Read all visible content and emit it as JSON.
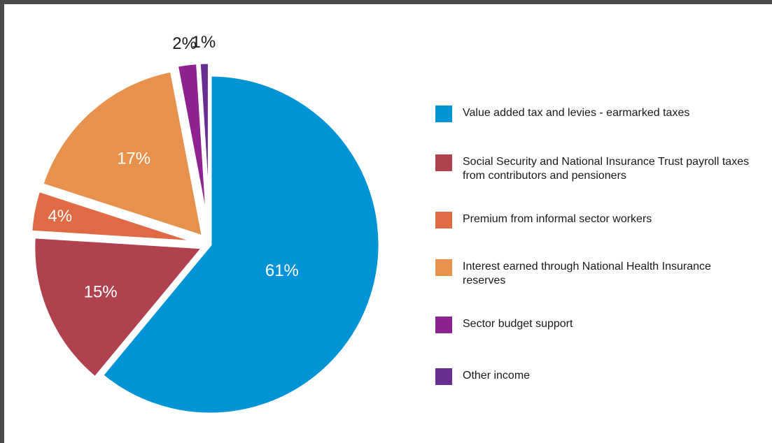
{
  "chart_data": {
    "type": "pie",
    "title": "",
    "labels": [
      "Value added tax and levies - earmarked taxes",
      "Social Security and National Insurance Trust payroll taxes from contributors and pensioners",
      "Premium from informal sector workers",
      "Interest earned through National Health Insurance reserves",
      "Sector budget support",
      "Other income"
    ],
    "values": [
      61,
      15,
      4,
      17,
      2,
      1
    ],
    "value_labels": [
      "61%",
      "15%",
      "4%",
      "17%",
      "2%",
      "1%"
    ],
    "colors": [
      "#0094d6",
      "#b04250",
      "#e06a44",
      "#e6914c",
      "#8e2290",
      "#6a2d91"
    ],
    "exploded": true,
    "legend_position": "right"
  },
  "legend": {
    "items": [
      {
        "label": "Value added tax and levies - earmarked taxes",
        "color": "#0094d6"
      },
      {
        "label": "Social Security and National Insurance Trust payroll taxes from contributors and pensioners",
        "color": "#b04250"
      },
      {
        "label": "Premium from informal sector workers",
        "color": "#e06a44"
      },
      {
        "label": "Interest earned through National Health Insurance reserves",
        "color": "#e6914c"
      },
      {
        "label": "Sector budget support",
        "color": "#8e2290"
      },
      {
        "label": "Other income",
        "color": "#6a2d91"
      }
    ]
  }
}
